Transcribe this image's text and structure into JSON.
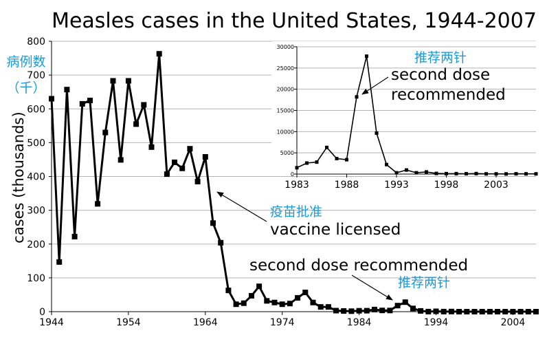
{
  "chart_data": [
    {
      "type": "line",
      "title": "Measles cases in the United States, 1944-2007",
      "ylabel": "cases (thousands)",
      "ylabel_cn_line1": "病例数",
      "ylabel_cn_line2": "（千）",
      "xlim": [
        1944,
        2007
      ],
      "ylim": [
        0,
        800
      ],
      "yticks": [
        "0",
        "100",
        "200",
        "300",
        "400",
        "500",
        "600",
        "700",
        "800"
      ],
      "xticks": [
        "1944",
        "1954",
        "1964",
        "1974",
        "1984",
        "1994",
        "2004"
      ],
      "grid": true,
      "color": "#000000",
      "x": [
        1944,
        1945,
        1946,
        1947,
        1948,
        1949,
        1950,
        1951,
        1952,
        1953,
        1954,
        1955,
        1956,
        1957,
        1958,
        1959,
        1960,
        1961,
        1962,
        1963,
        1964,
        1965,
        1966,
        1967,
        1968,
        1969,
        1970,
        1971,
        1972,
        1973,
        1974,
        1975,
        1976,
        1977,
        1978,
        1979,
        1980,
        1981,
        1982,
        1983,
        1984,
        1985,
        1986,
        1987,
        1988,
        1989,
        1990,
        1991,
        1992,
        1993,
        1994,
        1995,
        1996,
        1997,
        1998,
        1999,
        2000,
        2001,
        2002,
        2003,
        2004,
        2005,
        2006,
        2007
      ],
      "values": [
        630,
        147,
        657,
        222,
        615,
        625,
        319,
        530,
        683,
        449,
        683,
        555,
        612,
        487,
        763,
        407,
        442,
        424,
        482,
        385,
        458,
        262,
        204,
        63,
        22,
        25,
        47,
        75,
        32,
        27,
        22,
        24,
        41,
        57,
        27,
        14,
        14,
        3,
        2,
        1.5,
        2.6,
        2.8,
        6.3,
        3.7,
        3.4,
        18,
        28,
        9.6,
        2.2,
        0.3,
        1,
        0.3,
        0.5,
        0.1,
        0.1,
        0.1,
        0.1,
        0.1,
        0.04,
        0.06,
        0.04,
        0.07,
        0.06,
        0.04
      ]
    },
    {
      "type": "line",
      "xlim": [
        1983,
        2007
      ],
      "ylim": [
        0,
        30000
      ],
      "yticks": [
        "0",
        "5000",
        "10000",
        "15000",
        "20000",
        "25000",
        "30000"
      ],
      "xticks": [
        "1983",
        "1988",
        "1993",
        "1998",
        "2003"
      ],
      "grid": true,
      "color": "#000000",
      "x": [
        1983,
        1984,
        1985,
        1986,
        1987,
        1988,
        1989,
        1990,
        1991,
        1992,
        1993,
        1994,
        1995,
        1996,
        1997,
        1998,
        1999,
        2000,
        2001,
        2002,
        2003,
        2004,
        2005,
        2006,
        2007
      ],
      "values": [
        1497,
        2587,
        2822,
        6282,
        3655,
        3396,
        18193,
        27786,
        9643,
        2237,
        312,
        963,
        309,
        508,
        138,
        100,
        100,
        86,
        116,
        44,
        56,
        37,
        66,
        55,
        43
      ]
    }
  ],
  "annotations": {
    "vaccine_cn": "疫苗批准",
    "vaccine_en": "vaccine licensed",
    "second_dose_en": "second dose recommended",
    "second_dose_cn": "推荐两针",
    "inset_cn": "推荐两针",
    "inset_en_line1": "second dose",
    "inset_en_line2": "recommended"
  }
}
